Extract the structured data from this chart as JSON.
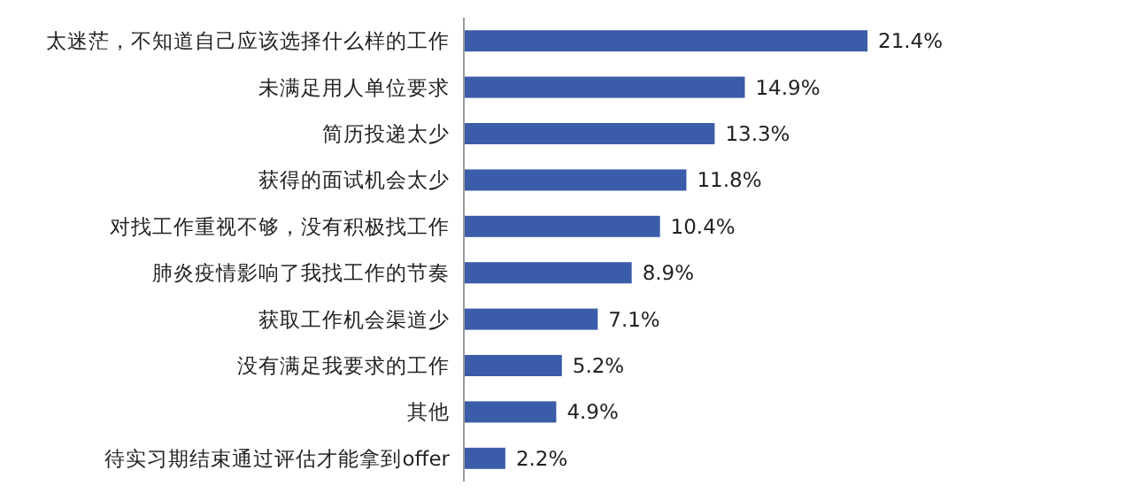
{
  "chart_data": {
    "type": "bar",
    "orientation": "horizontal",
    "color": "#3b5ca8",
    "value_labels": [
      "21.4%",
      "14.9%",
      "13.3%",
      "11.8%",
      "10.4%",
      "8.9%",
      "7.1%",
      "5.2%",
      "4.9%",
      "2.2%"
    ],
    "categories": [
      "太迷茫，不知道自己应该选择什么样的工作",
      "未满足用人单位要求",
      "简历投递太少",
      "获得的面试机会太少",
      "对找工作重视不够，没有积极找工作",
      "肺炎疫情影响了我找工作的节奏",
      "获取工作机会渠道少",
      "没有满足我要求的工作",
      "其他",
      "待实习期结束通过评估才能拿到offer"
    ],
    "values": [
      21.4,
      14.9,
      13.3,
      11.8,
      10.4,
      8.9,
      7.1,
      5.2,
      4.9,
      2.2
    ]
  }
}
